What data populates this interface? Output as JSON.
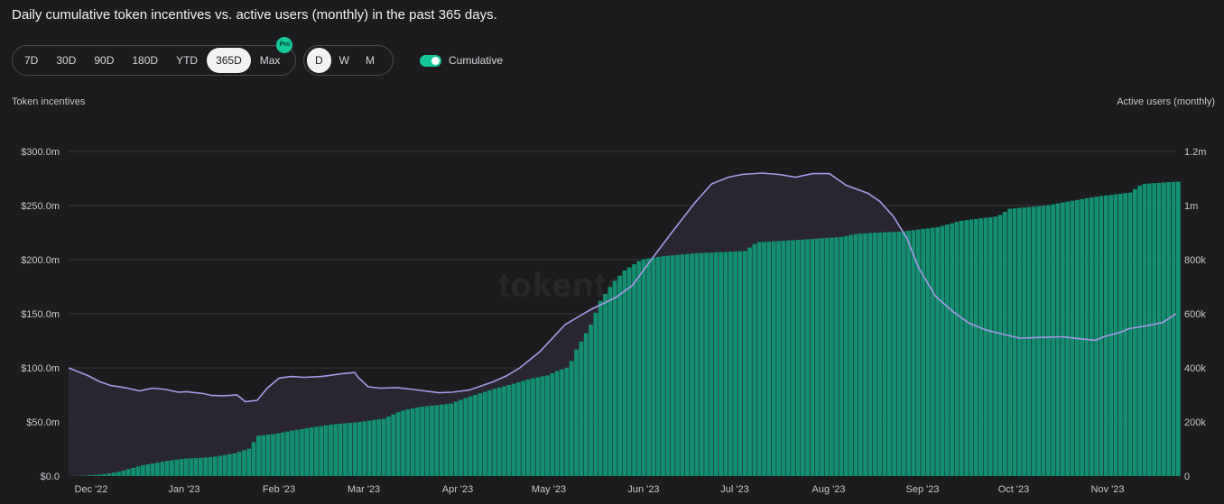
{
  "title": "Daily cumulative token incentives vs. active users (monthly) in the past 365 days.",
  "controls": {
    "ranges": [
      "7D",
      "30D",
      "90D",
      "180D",
      "YTD",
      "365D",
      "Max"
    ],
    "active_range": "365D",
    "pro_badge": "Pro",
    "granularity": [
      "D",
      "W",
      "M"
    ],
    "active_granularity": "D",
    "cumulative_label": "Cumulative",
    "cumulative_on": true
  },
  "watermark": "tokenterminal_",
  "colors": {
    "bars": "#138f72",
    "line": "#a899e8",
    "accent": "#16c79a",
    "background": "#1c1c1e"
  },
  "chart_data": {
    "type": "bar",
    "title": "Daily cumulative token incentives vs. active users (monthly) in the past 365 days.",
    "ylabel": "Token incentives",
    "y2label": "Active users (monthly)",
    "ylim": [
      0,
      300
    ],
    "y2lim": [
      0,
      1200000
    ],
    "yticks": [
      "$0.0",
      "$50.0m",
      "$100.0m",
      "$150.0m",
      "$200.0m",
      "$250.0m",
      "$300.0m"
    ],
    "y2ticks": [
      "0",
      "200k",
      "400k",
      "600k",
      "800k",
      "1m",
      "1.2m"
    ],
    "xticks": [
      "Dec '22",
      "Jan '23",
      "Feb '23",
      "Mar '23",
      "Apr '23",
      "May '23",
      "Jun '23",
      "Jul '23",
      "Aug '23",
      "Sep '23",
      "Oct '23",
      "Nov '23"
    ],
    "series": [
      {
        "name": "Token incentives",
        "kind": "bar",
        "axis": "left",
        "unit": "$m",
        "day_values": [
          [
            0,
            0
          ],
          [
            5,
            0.3
          ],
          [
            10,
            1
          ],
          [
            15,
            2
          ],
          [
            20,
            4
          ],
          [
            25,
            7
          ],
          [
            30,
            10
          ],
          [
            35,
            12
          ],
          [
            40,
            14
          ],
          [
            47,
            16
          ],
          [
            55,
            17
          ],
          [
            60,
            18
          ],
          [
            68,
            21
          ],
          [
            75,
            26
          ],
          [
            77,
            37
          ],
          [
            85,
            39
          ],
          [
            92,
            42
          ],
          [
            100,
            45
          ],
          [
            110,
            48
          ],
          [
            120,
            50
          ],
          [
            130,
            53
          ],
          [
            137,
            60
          ],
          [
            145,
            64
          ],
          [
            158,
            67
          ],
          [
            165,
            73
          ],
          [
            175,
            80
          ],
          [
            185,
            86
          ],
          [
            191,
            90
          ],
          [
            198,
            93
          ],
          [
            202,
            97
          ],
          [
            207,
            101
          ],
          [
            210,
            117
          ],
          [
            213,
            128
          ],
          [
            216,
            140
          ],
          [
            220,
            162
          ],
          [
            225,
            178
          ],
          [
            230,
            190
          ],
          [
            237,
            200
          ],
          [
            245,
            203
          ],
          [
            260,
            206
          ],
          [
            280,
            208
          ],
          [
            285,
            216
          ],
          [
            300,
            218
          ],
          [
            320,
            221
          ],
          [
            327,
            224
          ],
          [
            335,
            225
          ],
          [
            345,
            226
          ],
          [
            360,
            230
          ],
          [
            370,
            236
          ],
          [
            385,
            240
          ],
          [
            390,
            247
          ],
          [
            405,
            250
          ],
          [
            415,
            254
          ],
          [
            425,
            258
          ],
          [
            440,
            262
          ],
          [
            445,
            270
          ],
          [
            452,
            271
          ],
          [
            458,
            272
          ]
        ]
      },
      {
        "name": "Active users (monthly)",
        "kind": "line",
        "axis": "right",
        "unit": "users",
        "day_values": [
          [
            0,
            400000
          ],
          [
            6,
            385000
          ],
          [
            12,
            370000
          ],
          [
            18,
            350000
          ],
          [
            25,
            335000
          ],
          [
            35,
            325000
          ],
          [
            42,
            315000
          ],
          [
            50,
            325000
          ],
          [
            58,
            320000
          ],
          [
            65,
            310000
          ],
          [
            70,
            312000
          ],
          [
            80,
            305000
          ],
          [
            85,
            298000
          ],
          [
            92,
            297000
          ],
          [
            100,
            300000
          ],
          [
            105,
            275000
          ],
          [
            112,
            280000
          ],
          [
            118,
            325000
          ],
          [
            125,
            362000
          ],
          [
            132,
            368000
          ],
          [
            140,
            365000
          ],
          [
            150,
            368000
          ],
          [
            155,
            372000
          ],
          [
            162,
            378000
          ],
          [
            170,
            383000
          ],
          [
            172,
            365000
          ],
          [
            178,
            330000
          ],
          [
            185,
            325000
          ],
          [
            195,
            327000
          ],
          [
            205,
            320000
          ],
          [
            220,
            308000
          ],
          [
            228,
            310000
          ],
          [
            238,
            318000
          ],
          [
            252,
            348000
          ],
          [
            260,
            370000
          ],
          [
            268,
            400000
          ],
          [
            280,
            460000
          ],
          [
            295,
            560000
          ],
          [
            310,
            615000
          ],
          [
            325,
            660000
          ],
          [
            335,
            705000
          ],
          [
            345,
            790000
          ],
          [
            358,
            898000
          ],
          [
            372,
            1010000
          ],
          [
            382,
            1080000
          ],
          [
            392,
            1105000
          ],
          [
            400,
            1115000
          ],
          [
            412,
            1120000
          ],
          [
            422,
            1115000
          ],
          [
            432,
            1105000
          ],
          [
            442,
            1118000
          ],
          [
            452,
            1118000
          ],
          [
            462,
            1075000
          ],
          [
            475,
            1045000
          ],
          [
            482,
            1015000
          ],
          [
            490,
            960000
          ],
          [
            498,
            880000
          ],
          [
            505,
            770000
          ],
          [
            515,
            665000
          ],
          [
            525,
            610000
          ],
          [
            535,
            565000
          ],
          [
            545,
            540000
          ],
          [
            558,
            520000
          ],
          [
            565,
            510000
          ],
          [
            575,
            512000
          ],
          [
            590,
            515000
          ],
          [
            600,
            508000
          ],
          [
            610,
            502000
          ],
          [
            615,
            515000
          ],
          [
            625,
            532000
          ],
          [
            630,
            545000
          ],
          [
            640,
            555000
          ],
          [
            650,
            568000
          ],
          [
            658,
            600000
          ]
        ]
      }
    ]
  }
}
